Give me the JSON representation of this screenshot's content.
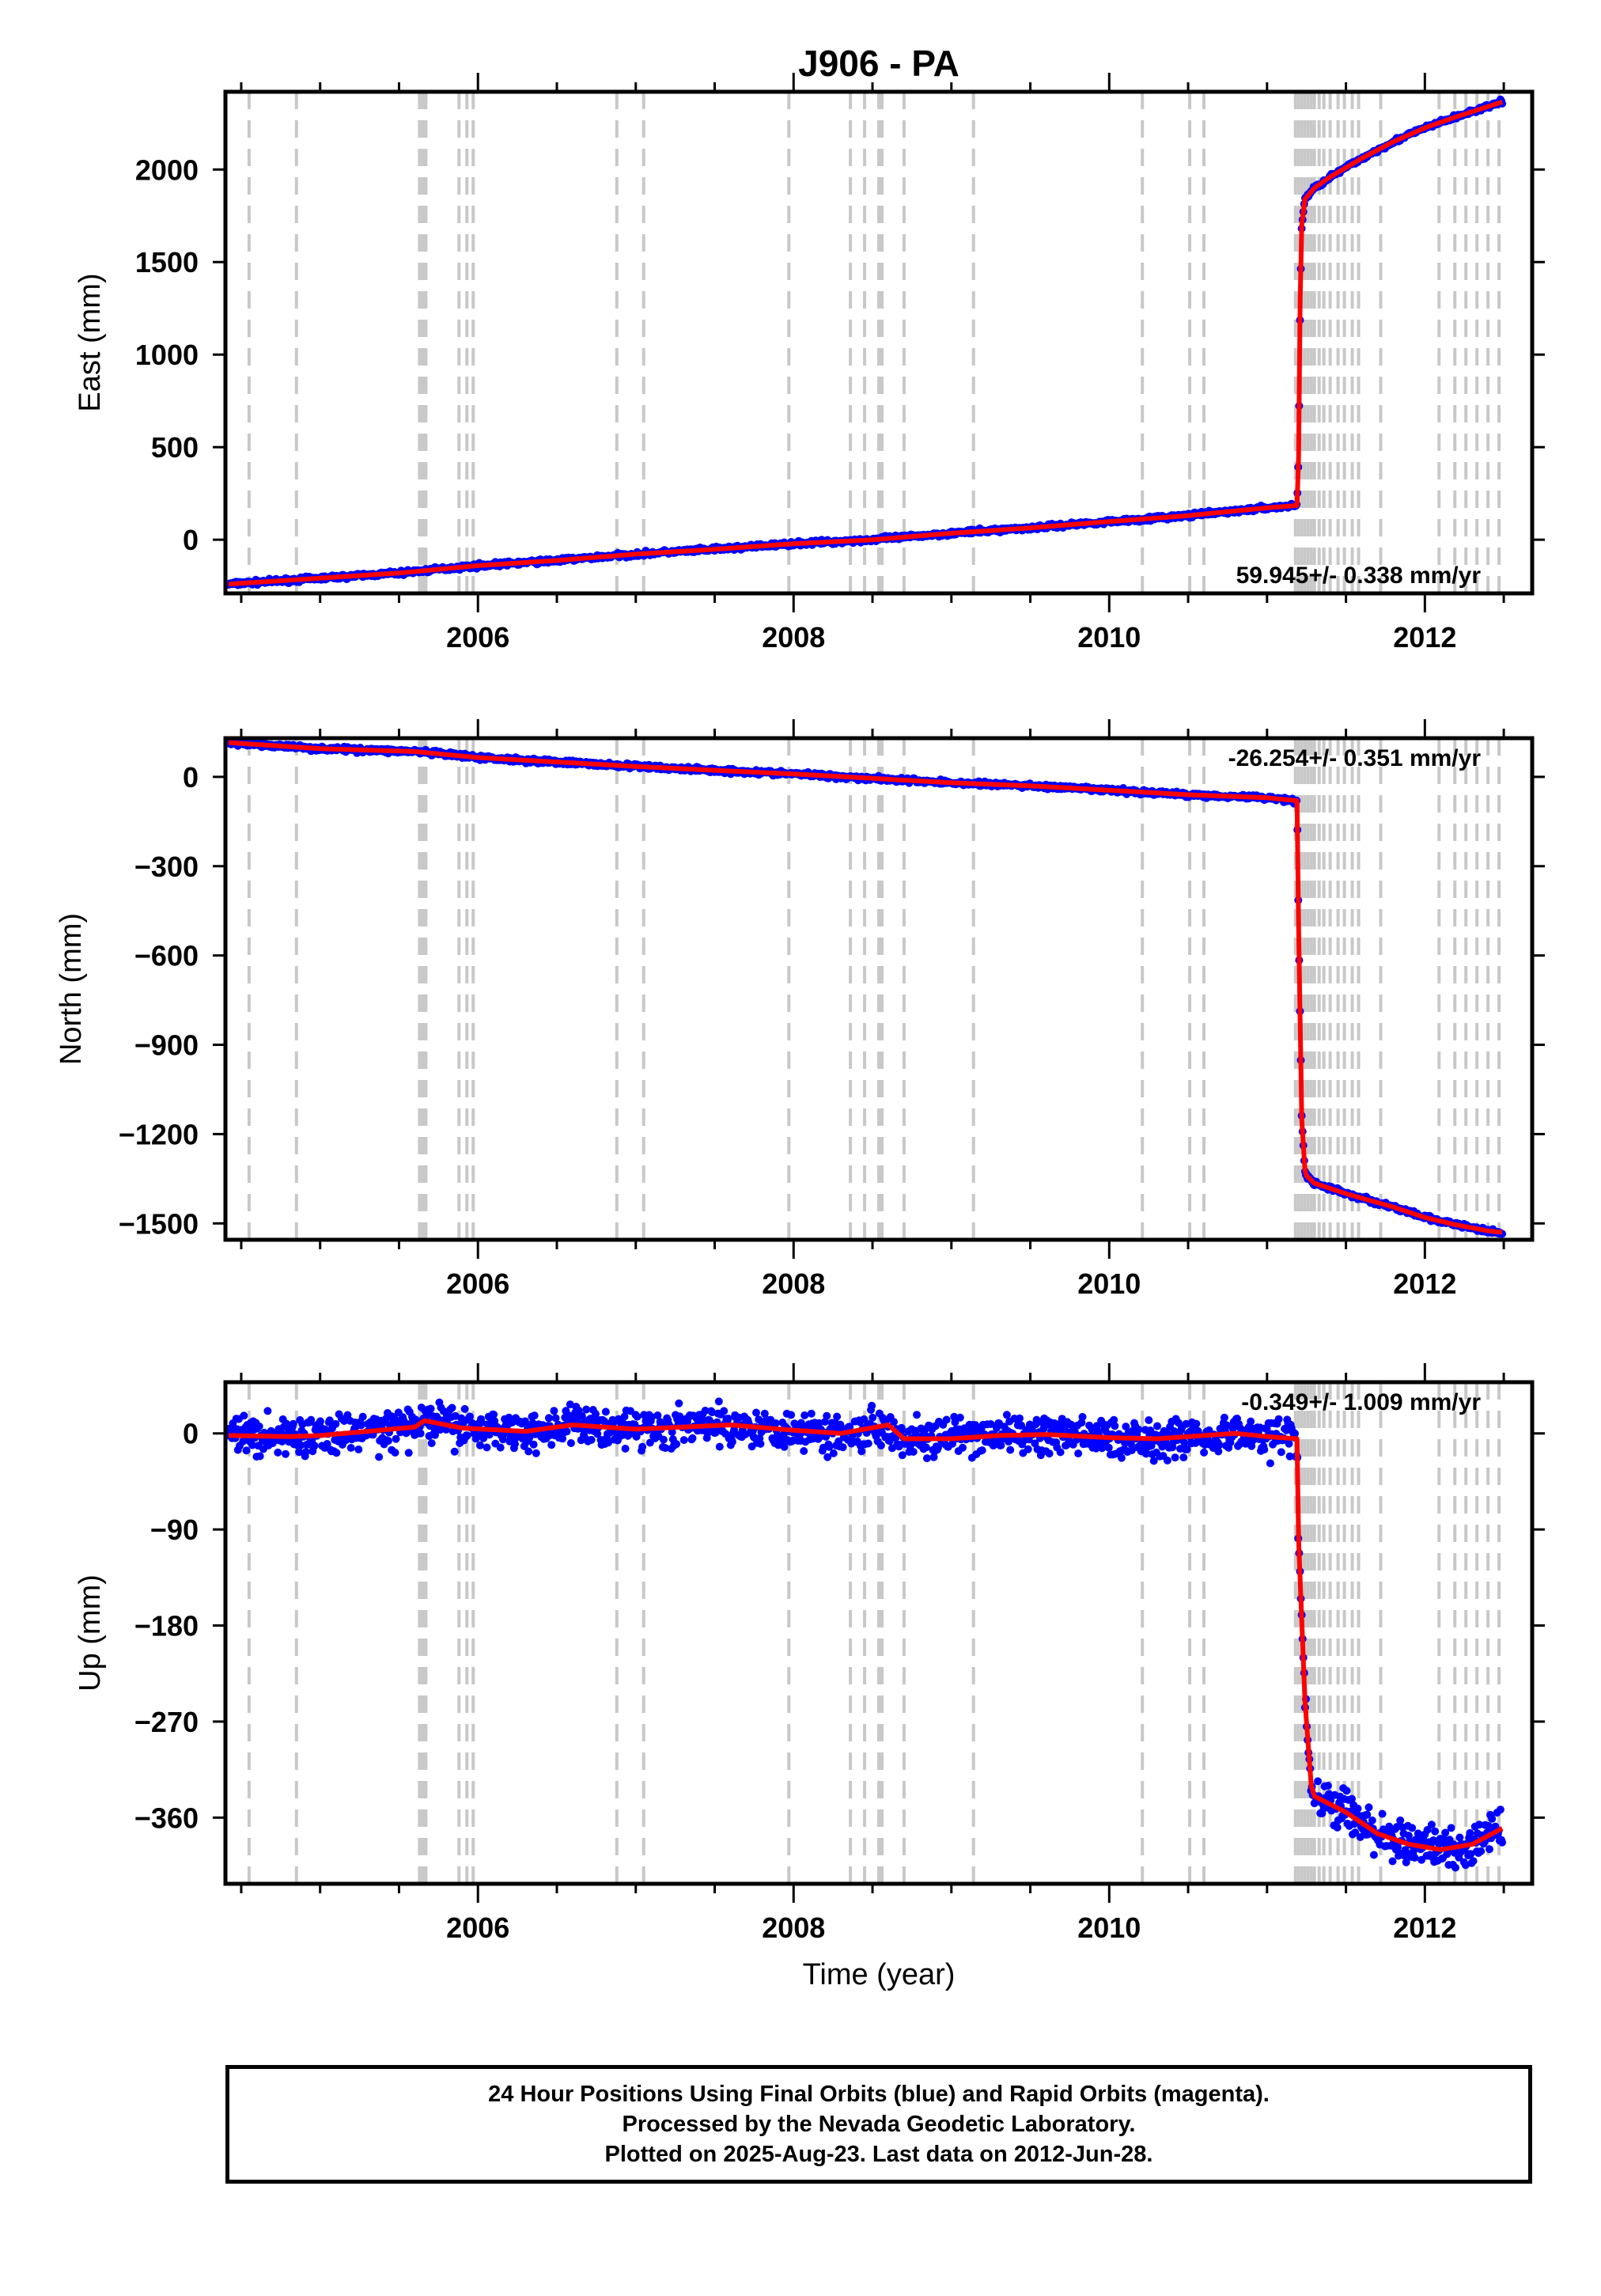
{
  "chart_data": {
    "title": "J906 - PA",
    "type": "scatter",
    "xlabel": "Time (year)",
    "xlim": [
      2004.4,
      2012.68
    ],
    "xticks": [
      2006,
      2008,
      2010,
      2012
    ],
    "xtick_labels": [
      "2006",
      "2008",
      "2010",
      "2012"
    ],
    "event_lines": [
      2004.55,
      2004.85,
      2005.63,
      2005.65,
      2005.66,
      2005.67,
      2005.88,
      2005.93,
      2005.97,
      2006.88,
      2007.05,
      2007.97,
      2008.36,
      2008.45,
      2008.54,
      2008.56,
      2008.7,
      2009.14,
      2010.21,
      2010.51,
      2010.6,
      2011.18,
      2011.2,
      2011.22,
      2011.24,
      2011.26,
      2011.28,
      2011.3,
      2011.33,
      2011.36,
      2011.4,
      2011.45,
      2011.49,
      2011.54,
      2011.58,
      2011.72,
      2012.09,
      2012.19,
      2012.26,
      2012.33,
      2012.4,
      2012.47
    ],
    "panels": [
      {
        "ylabel": "East (mm)",
        "ylim": [
          -290,
          2420
        ],
        "yticks": [
          0,
          500,
          1000,
          1500,
          2000
        ],
        "ytick_labels": [
          "0",
          "500",
          "1000",
          "1500",
          "2000"
        ],
        "rate": "59.945+/- 0.338 mm/yr",
        "series": [
          {
            "color": "#0000ff",
            "kind": "points",
            "noise": 6,
            "x": [
              2004.42,
              2005,
              2005.5,
              2006,
              2006.5,
              2007,
              2007.5,
              2008,
              2008.5,
              2009,
              2009.5,
              2010,
              2010.5,
              2011.0,
              2011.19,
              2011.2,
              2011.21,
              2011.22,
              2011.24,
              2011.27,
              2011.3,
              2011.4,
              2011.6,
              2011.8,
              2012.0,
              2012.2,
              2012.4,
              2012.49
            ],
            "y": [
              -240,
              -208,
              -180,
              -140,
              -112,
              -78,
              -52,
              -22,
              0,
              35,
              64,
              98,
              130,
              172,
              185,
              450,
              1300,
              1700,
              1840,
              1870,
              1900,
              1960,
              2060,
              2150,
              2225,
              2285,
              2340,
              2365
            ]
          },
          {
            "color": "#ff0000",
            "kind": "line",
            "x": [
              2004.42,
              2005,
              2005.5,
              2006,
              2006.5,
              2007,
              2007.5,
              2008,
              2008.5,
              2009,
              2009.5,
              2010,
              2010.5,
              2011.0,
              2011.19,
              2011.2,
              2011.21,
              2011.22,
              2011.24,
              2011.27,
              2011.3,
              2011.4,
              2011.6,
              2011.8,
              2012.0,
              2012.2,
              2012.4,
              2012.49
            ],
            "y": [
              -240,
              -208,
              -180,
              -140,
              -112,
              -78,
              -52,
              -22,
              0,
              35,
              64,
              98,
              130,
              172,
              185,
              450,
              1300,
              1700,
              1840,
              1870,
              1900,
              1960,
              2060,
              2150,
              2225,
              2285,
              2340,
              2365
            ]
          }
        ]
      },
      {
        "ylabel": "North (mm)",
        "ylim": [
          -1555,
          130
        ],
        "yticks": [
          0,
          -300,
          -600,
          -900,
          -1200,
          -1500
        ],
        "ytick_labels": [
          "0",
          "−300",
          "−600",
          "−900",
          "−1200",
          "−1500"
        ],
        "rate": "-26.254+/- 0.351 mm/yr",
        "series": [
          {
            "color": "#0000ff",
            "kind": "points",
            "noise": 4,
            "x": [
              2004.42,
              2005,
              2005.6,
              2005.7,
              2006,
              2006.5,
              2007,
              2007.5,
              2008,
              2008.5,
              2009,
              2009.5,
              2010,
              2010.5,
              2011.0,
              2011.19,
              2011.2,
              2011.22,
              2011.24,
              2011.25,
              2011.27,
              2011.3,
              2011.5,
              2011.8,
              2012.0,
              2012.2,
              2012.4,
              2012.49
            ],
            "y": [
              115,
              95,
              85,
              80,
              65,
              50,
              35,
              22,
              10,
              -5,
              -20,
              -30,
              -45,
              -60,
              -70,
              -80,
              -500,
              -1150,
              -1320,
              -1340,
              -1350,
              -1365,
              -1400,
              -1445,
              -1480,
              -1505,
              -1525,
              -1530
            ]
          },
          {
            "color": "#ff0000",
            "kind": "line",
            "x": [
              2004.42,
              2005,
              2005.6,
              2005.7,
              2006,
              2006.5,
              2007,
              2007.5,
              2008,
              2008.5,
              2009,
              2009.5,
              2010,
              2010.5,
              2011.0,
              2011.19,
              2011.2,
              2011.22,
              2011.24,
              2011.25,
              2011.27,
              2011.3,
              2011.5,
              2011.8,
              2012.0,
              2012.2,
              2012.4,
              2012.49
            ],
            "y": [
              115,
              95,
              85,
              80,
              65,
              50,
              35,
              22,
              10,
              -5,
              -20,
              -30,
              -45,
              -60,
              -70,
              -80,
              -500,
              -1150,
              -1320,
              -1340,
              -1350,
              -1365,
              -1400,
              -1445,
              -1480,
              -1505,
              -1525,
              -1530
            ]
          }
        ]
      },
      {
        "ylabel": "Up (mm)",
        "ylim": [
          -422,
          48
        ],
        "yticks": [
          0,
          -90,
          -180,
          -270,
          -360
        ],
        "ytick_labels": [
          "0",
          "−90",
          "−180",
          "−270",
          "−360"
        ],
        "rate": "-0.349+/- 1.009 mm/yr",
        "series": [
          {
            "color": "#0000ff",
            "kind": "points",
            "noise": 9,
            "x": [
              2004.42,
              2004.8,
              2005.0,
              2005.3,
              2005.6,
              2005.66,
              2005.9,
              2006.3,
              2006.6,
              2007.0,
              2007.3,
              2007.6,
              2008.0,
              2008.3,
              2008.6,
              2008.7,
              2009.0,
              2009.3,
              2009.6,
              2010.0,
              2010.3,
              2010.6,
              2010.8,
              2011.0,
              2011.19,
              2011.2,
              2011.24,
              2011.28,
              2011.3,
              2011.5,
              2011.7,
              2011.9,
              2012.1,
              2012.3,
              2012.49
            ],
            "y": [
              -2,
              -3,
              -2,
              2,
              6,
              12,
              5,
              2,
              8,
              4,
              6,
              8,
              3,
              0,
              8,
              -5,
              -5,
              -2,
              -1,
              -4,
              -5,
              -2,
              0,
              -3,
              -5,
              -100,
              -250,
              -330,
              -340,
              -355,
              -375,
              -385,
              -390,
              -385,
              -370
            ]
          },
          {
            "color": "#ff0000",
            "kind": "line",
            "x": [
              2004.42,
              2004.8,
              2005.0,
              2005.3,
              2005.6,
              2005.66,
              2005.9,
              2006.3,
              2006.6,
              2007.0,
              2007.3,
              2007.6,
              2008.0,
              2008.3,
              2008.6,
              2008.7,
              2009.0,
              2009.3,
              2009.6,
              2010.0,
              2010.3,
              2010.6,
              2010.8,
              2011.0,
              2011.19,
              2011.2,
              2011.24,
              2011.28,
              2011.3,
              2011.5,
              2011.7,
              2011.9,
              2012.1,
              2012.3,
              2012.49
            ],
            "y": [
              -2,
              -3,
              -2,
              2,
              6,
              12,
              5,
              2,
              8,
              4,
              6,
              8,
              3,
              0,
              8,
              -5,
              -5,
              -2,
              -1,
              -4,
              -5,
              -2,
              0,
              -3,
              -5,
              -100,
              -250,
              -330,
              -340,
              -355,
              -375,
              -385,
              -390,
              -385,
              -370
            ]
          }
        ]
      }
    ],
    "footer": [
      "24 Hour Positions Using Final Orbits (blue) and Rapid Orbits (magenta).",
      "Processed by the Nevada Geodetic Laboratory.",
      "Plotted on 2025-Aug-23. Last data on 2012-Jun-28."
    ]
  }
}
